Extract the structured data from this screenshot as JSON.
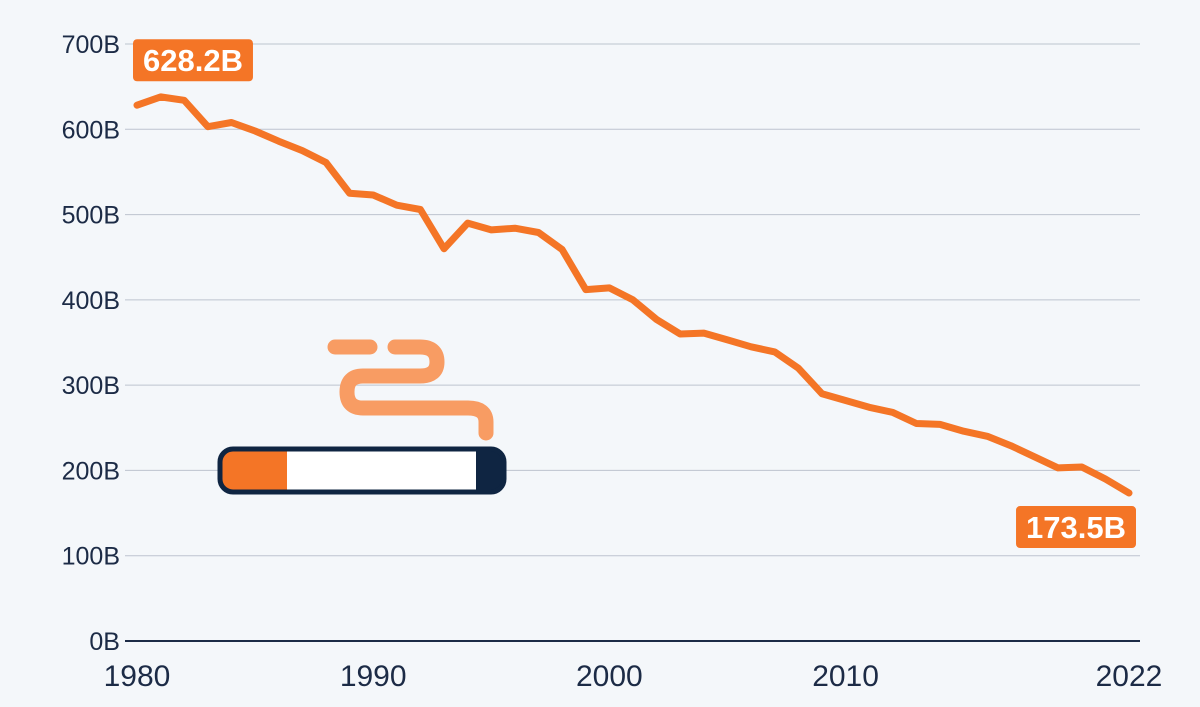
{
  "chart_data": {
    "type": "line",
    "title": "",
    "xlabel": "",
    "ylabel": "",
    "xlim": [
      1980,
      2022
    ],
    "ylim": [
      0,
      700
    ],
    "grid": true,
    "legend": "none",
    "x_ticks": [
      1980,
      1990,
      2000,
      2010,
      2022
    ],
    "x_tick_labels": [
      "1980",
      "1990",
      "2000",
      "2010",
      "2022"
    ],
    "y_ticks": [
      0,
      100,
      200,
      300,
      400,
      500,
      600,
      700
    ],
    "y_tick_labels": [
      "0B",
      "100B",
      "200B",
      "300B",
      "400B",
      "500B",
      "600B",
      "700B"
    ],
    "series": [
      {
        "x": [
          1980,
          1981,
          1982,
          1983,
          1984,
          1985,
          1986,
          1987,
          1988,
          1989,
          1990,
          1991,
          1992,
          1993,
          1994,
          1995,
          1996,
          1997,
          1998,
          1999,
          2000,
          2001,
          2002,
          2003,
          2004,
          2005,
          2006,
          2007,
          2008,
          2009,
          2010,
          2011,
          2012,
          2013,
          2014,
          2015,
          2016,
          2017,
          2018,
          2019,
          2020,
          2021,
          2022
        ],
        "values": [
          628.2,
          638,
          634,
          603,
          608,
          598,
          586,
          575,
          561,
          525,
          523,
          511,
          506,
          460,
          490,
          482,
          484,
          479,
          459,
          412,
          414,
          400,
          377,
          360,
          361,
          353,
          345,
          339,
          320,
          290,
          282,
          274,
          268,
          255,
          254,
          246,
          240,
          229,
          216,
          203,
          204,
          190,
          173.5
        ],
        "color": "#f47526"
      }
    ],
    "annotations": [
      {
        "x": 1980,
        "value": 628.2,
        "label": "628.2B",
        "position": "above"
      },
      {
        "x": 2022,
        "value": 173.5,
        "label": "173.5B",
        "position": "below"
      }
    ]
  },
  "illustration": {
    "icon": "cigarette-icon",
    "filter_color": "#f47526",
    "smoke_color": "#f89c63",
    "tip_color": "#0f2542"
  }
}
